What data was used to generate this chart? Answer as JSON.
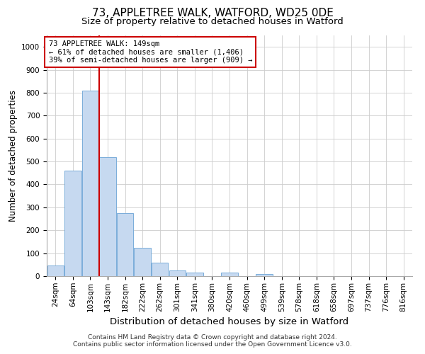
{
  "title_line1": "73, APPLETREE WALK, WATFORD, WD25 0DE",
  "title_line2": "Size of property relative to detached houses in Watford",
  "xlabel": "Distribution of detached houses by size in Watford",
  "ylabel": "Number of detached properties",
  "footnote": "Contains HM Land Registry data © Crown copyright and database right 2024.\nContains public sector information licensed under the Open Government Licence v3.0.",
  "bar_labels": [
    "24sqm",
    "64sqm",
    "103sqm",
    "143sqm",
    "182sqm",
    "222sqm",
    "262sqm",
    "301sqm",
    "341sqm",
    "380sqm",
    "420sqm",
    "460sqm",
    "499sqm",
    "539sqm",
    "578sqm",
    "618sqm",
    "658sqm",
    "697sqm",
    "737sqm",
    "776sqm",
    "816sqm"
  ],
  "bar_values": [
    45,
    460,
    810,
    520,
    275,
    125,
    60,
    25,
    15,
    0,
    15,
    0,
    10,
    0,
    0,
    0,
    0,
    0,
    0,
    0,
    0
  ],
  "bar_color": "#c6d9f0",
  "bar_edge_color": "#7aadda",
  "ylim": [
    0,
    1050
  ],
  "yticks": [
    0,
    100,
    200,
    300,
    400,
    500,
    600,
    700,
    800,
    900,
    1000
  ],
  "annotation_text": "73 APPLETREE WALK: 149sqm\n← 61% of detached houses are smaller (1,406)\n39% of semi-detached houses are larger (909) →",
  "annotation_box_color": "#ffffff",
  "annotation_box_edge": "#cc0000",
  "redline_color": "#cc0000",
  "background_color": "#ffffff",
  "grid_color": "#cccccc",
  "title_fontsize": 11,
  "subtitle_fontsize": 9.5,
  "axis_label_fontsize": 8.5,
  "tick_fontsize": 7.5,
  "annotation_fontsize": 7.5,
  "footnote_fontsize": 6.5
}
